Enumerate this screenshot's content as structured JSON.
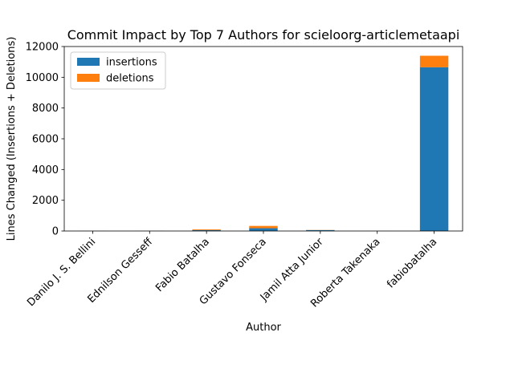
{
  "chart_data": {
    "type": "bar",
    "stacked": true,
    "title": "Commit Impact by Top 7 Authors for scieloorg-articlemetaapi",
    "xlabel": "Author",
    "ylabel": "Lines Changed (Insertions + Deletions)",
    "categories": [
      "Danilo J. S. Bellini",
      "Ednilson Gesseff",
      "Fabio Batalha",
      "Gustavo Fonseca",
      "Jamil Atta Junior",
      "Roberta Takenaka",
      "fabiobatalha"
    ],
    "series": [
      {
        "name": "insertions",
        "color": "#1f77b4",
        "values": [
          5,
          5,
          60,
          180,
          60,
          2,
          10650
        ]
      },
      {
        "name": "deletions",
        "color": "#ff7f0e",
        "values": [
          2,
          2,
          50,
          150,
          10,
          1,
          750
        ]
      }
    ],
    "ylim": [
      0,
      12000
    ],
    "yticks": [
      0,
      2000,
      4000,
      6000,
      8000,
      10000,
      12000
    ],
    "grid": false,
    "legend_position": "top-left"
  }
}
